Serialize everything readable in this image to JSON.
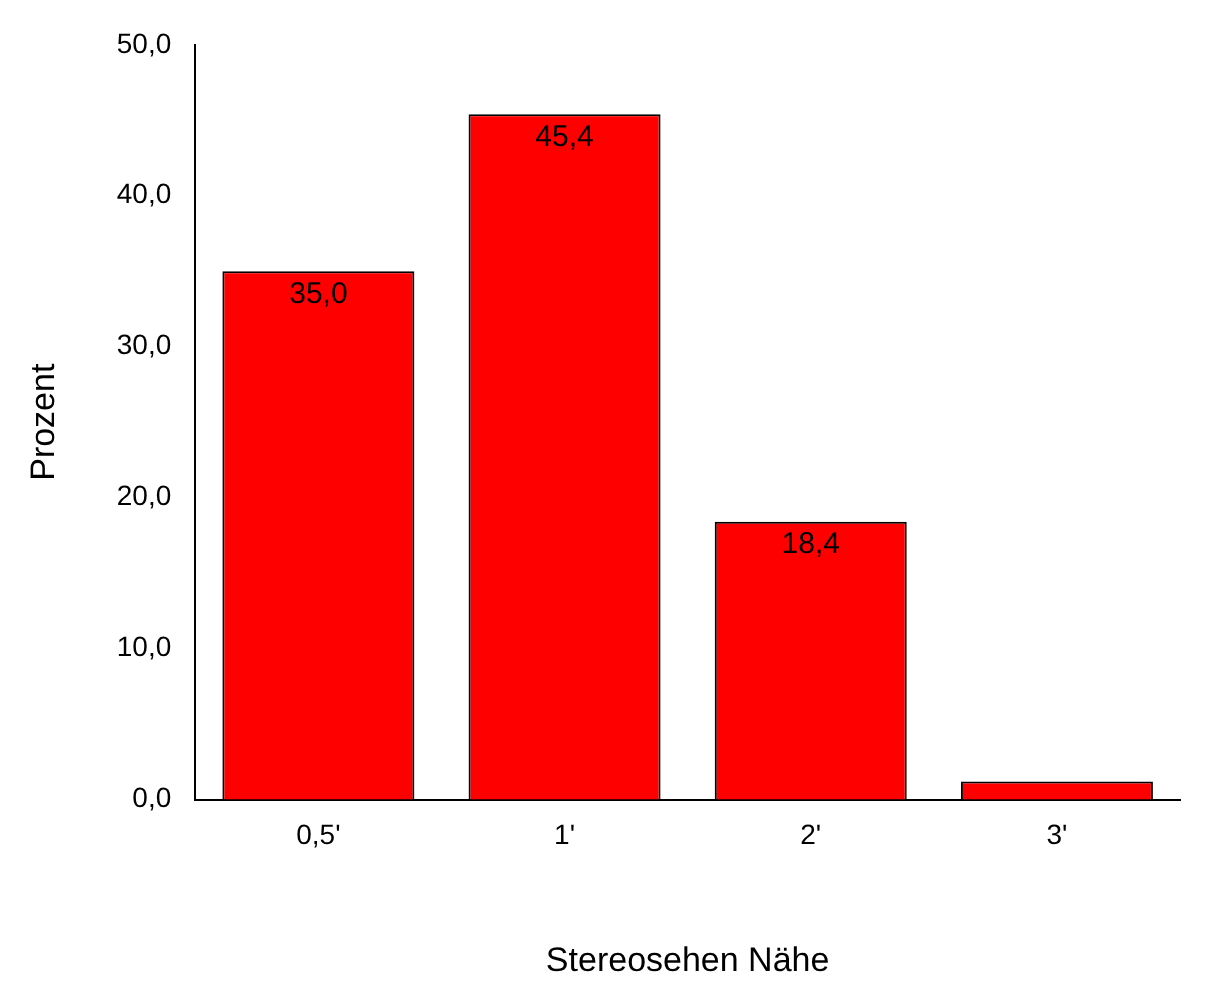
{
  "chart_data": {
    "type": "bar",
    "xlabel": "Stereosehen Nähe",
    "ylabel": "Prozent",
    "categories": [
      "0,5'",
      "1'",
      "2'",
      "3'"
    ],
    "values": [
      35.0,
      45.4,
      18.4,
      1.2
    ],
    "value_labels": [
      "35,0",
      "45,4",
      "18,4",
      null
    ],
    "color": "#ff0000",
    "ylim": [
      0,
      50
    ],
    "yticks": [
      {
        "value": 0,
        "label": "0,0"
      },
      {
        "value": 10,
        "label": "10,0"
      },
      {
        "value": 20,
        "label": "20,0"
      },
      {
        "value": 30,
        "label": "30,0"
      },
      {
        "value": 40,
        "label": "40,0"
      },
      {
        "value": 50,
        "label": "50,0"
      }
    ],
    "grid": false,
    "legend": false
  }
}
